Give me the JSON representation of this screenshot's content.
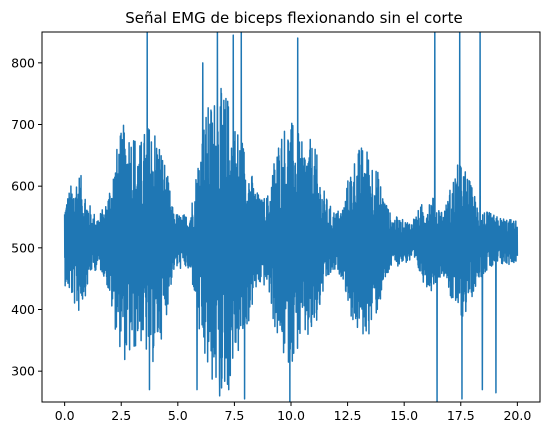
{
  "chart_data": {
    "type": "line",
    "title": "Señal EMG de biceps flexionando sin el corte",
    "xlabel": "",
    "ylabel": "",
    "xlim": [
      -1.0,
      21.0
    ],
    "ylim": [
      250,
      850
    ],
    "x_ticks": [
      0.0,
      2.5,
      5.0,
      7.5,
      10.0,
      12.5,
      15.0,
      17.5,
      20.0
    ],
    "x_tick_labels": [
      "0.0",
      "2.5",
      "5.0",
      "7.5",
      "10.0",
      "12.5",
      "15.0",
      "17.5",
      "20.0"
    ],
    "y_ticks": [
      300,
      400,
      500,
      600,
      700,
      800
    ],
    "y_tick_labels": [
      "300",
      "400",
      "500",
      "600",
      "700",
      "800"
    ],
    "grid": false,
    "series": [
      {
        "color": "#1f77b4",
        "baseline": 510,
        "envelope": {
          "x": [
            0.0,
            0.3,
            0.6,
            0.9,
            1.2,
            1.5,
            1.8,
            2.1,
            2.4,
            2.7,
            3.0,
            3.3,
            3.6,
            3.9,
            4.2,
            4.5,
            4.8,
            5.1,
            5.4,
            5.7,
            6.0,
            6.3,
            6.6,
            6.9,
            7.2,
            7.5,
            7.8,
            8.1,
            8.4,
            8.7,
            9.0,
            9.3,
            9.6,
            9.9,
            10.2,
            10.5,
            10.8,
            11.1,
            11.4,
            11.7,
            12.0,
            12.3,
            12.6,
            12.9,
            13.2,
            13.5,
            13.8,
            14.1,
            14.4,
            14.7,
            15.0,
            15.3,
            15.6,
            15.9,
            16.2,
            16.5,
            16.8,
            17.1,
            17.4,
            17.7,
            18.0,
            18.3,
            18.6,
            18.9,
            19.2,
            19.5,
            19.8,
            20.0
          ],
          "amplitude": [
            70,
            95,
            120,
            90,
            50,
            45,
            60,
            120,
            170,
            200,
            190,
            160,
            190,
            200,
            170,
            120,
            50,
            45,
            45,
            80,
            180,
            220,
            240,
            250,
            240,
            200,
            180,
            140,
            90,
            70,
            80,
            150,
            190,
            200,
            190,
            160,
            170,
            150,
            90,
            60,
            50,
            60,
            120,
            150,
            160,
            150,
            120,
            80,
            45,
            40,
            35,
            35,
            50,
            70,
            80,
            60,
            55,
            100,
            130,
            120,
            90,
            60,
            50,
            45,
            40,
            40,
            35,
            35
          ]
        },
        "spikes": [
          {
            "x": 3.65,
            "y": 850
          },
          {
            "x": 3.75,
            "y": 270
          },
          {
            "x": 5.85,
            "y": 270
          },
          {
            "x": 6.1,
            "y": 800
          },
          {
            "x": 6.75,
            "y": 850
          },
          {
            "x": 6.85,
            "y": 260
          },
          {
            "x": 7.25,
            "y": 270
          },
          {
            "x": 7.45,
            "y": 845
          },
          {
            "x": 7.8,
            "y": 850
          },
          {
            "x": 7.95,
            "y": 255
          },
          {
            "x": 9.95,
            "y": 250
          },
          {
            "x": 10.3,
            "y": 840
          },
          {
            "x": 16.35,
            "y": 850
          },
          {
            "x": 16.45,
            "y": 250
          },
          {
            "x": 17.45,
            "y": 850
          },
          {
            "x": 17.55,
            "y": 255
          },
          {
            "x": 18.35,
            "y": 850
          },
          {
            "x": 18.45,
            "y": 270
          },
          {
            "x": 19.05,
            "y": 265
          }
        ],
        "samples": 2600
      }
    ]
  }
}
